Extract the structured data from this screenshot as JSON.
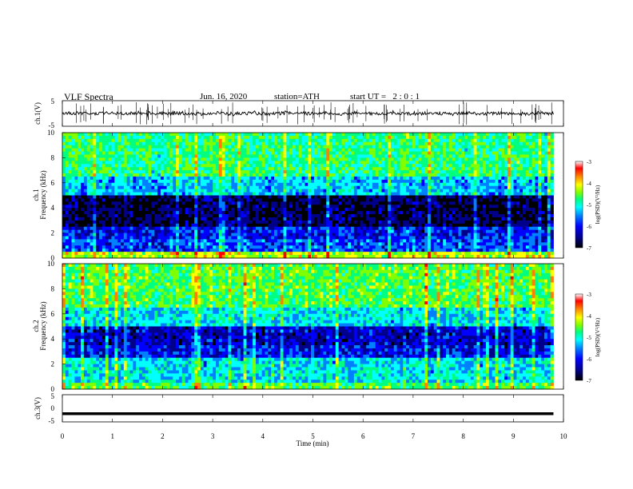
{
  "header": {
    "title": "VLF Spectra",
    "date": "Jun. 16, 2020",
    "station": "station=ATH",
    "start": "start UT =   2 : 0 : 1"
  },
  "colors": {
    "spectrogram_scale": [
      "#000000",
      "#00008b",
      "#0000ff",
      "#0080ff",
      "#00ffff",
      "#00ff80",
      "#80ff00",
      "#ffff00",
      "#ff8000",
      "#ff0000",
      "#ffffff"
    ]
  },
  "chart_data": [
    {
      "type": "line",
      "name": "ch1-waveform",
      "ylabel": "ch.1(V)",
      "ylim": [
        -5,
        5
      ],
      "y_ticks": [
        "5",
        "-5"
      ],
      "description_values": {
        "x_range_min": [
          0,
          9.8
        ],
        "baseline_V": 0.0,
        "spike_max_V": 4.5,
        "spike_min_V": -4.5
      }
    },
    {
      "type": "heatmap",
      "name": "ch1-spectrogram",
      "panel_label": "ch.1",
      "ylabel": "Frequency (kHz)",
      "ylim": [
        0,
        10
      ],
      "y_ticks": [
        "0",
        "2",
        "4",
        "6",
        "8",
        "10"
      ],
      "x_range_min": [
        0,
        9.8
      ],
      "colorbar": {
        "label": "log(PSD)(V²/Hz)",
        "range": [
          -7,
          -3
        ],
        "ticks": [
          "-3",
          "-4",
          "-5",
          "-6",
          "-7"
        ]
      },
      "band_levels": [
        {
          "f_from": 0.0,
          "f_to": 0.5,
          "level": -4.2
        },
        {
          "f_from": 0.5,
          "f_to": 1.5,
          "level": -5.8
        },
        {
          "f_from": 1.5,
          "f_to": 2.5,
          "level": -6.0
        },
        {
          "f_from": 2.5,
          "f_to": 5.0,
          "level": -6.6
        },
        {
          "f_from": 5.0,
          "f_to": 6.5,
          "level": -5.4
        },
        {
          "f_from": 6.5,
          "f_to": 10.0,
          "level": -4.8
        }
      ]
    },
    {
      "type": "heatmap",
      "name": "ch2-spectrogram",
      "panel_label": "ch.2",
      "ylabel": "Frequency (kHz)",
      "ylim": [
        0,
        10
      ],
      "y_ticks": [
        "0",
        "2",
        "4",
        "6",
        "8",
        "10"
      ],
      "x_range_min": [
        0,
        9.8
      ],
      "colorbar": {
        "label": "log(PSD)(V²/Hz)",
        "range": [
          -7,
          -3
        ],
        "ticks": [
          "-3",
          "-4",
          "-5",
          "-6",
          "-7"
        ]
      },
      "band_levels": [
        {
          "f_from": 0.0,
          "f_to": 0.5,
          "level": -4.6
        },
        {
          "f_from": 0.5,
          "f_to": 2.5,
          "level": -5.2
        },
        {
          "f_from": 2.5,
          "f_to": 3.5,
          "level": -6.0
        },
        {
          "f_from": 3.5,
          "f_to": 5.0,
          "level": -6.2
        },
        {
          "f_from": 5.0,
          "f_to": 6.5,
          "level": -5.2
        },
        {
          "f_from": 6.5,
          "f_to": 10.0,
          "level": -4.6
        }
      ]
    },
    {
      "type": "line",
      "name": "ch3-waveform",
      "ylabel": "ch.3(V)",
      "ylim": [
        -5,
        5
      ],
      "y_ticks": [
        "5",
        "0",
        "-5"
      ],
      "x_range_min": [
        0,
        9.8
      ],
      "description_values": {
        "baseline_V": -2.0
      }
    }
  ],
  "x_axis": {
    "label": "Time (min)",
    "ticks": [
      "0",
      "1",
      "2",
      "3",
      "4",
      "5",
      "6",
      "7",
      "8",
      "9",
      "10"
    ],
    "range": [
      0,
      10
    ]
  }
}
